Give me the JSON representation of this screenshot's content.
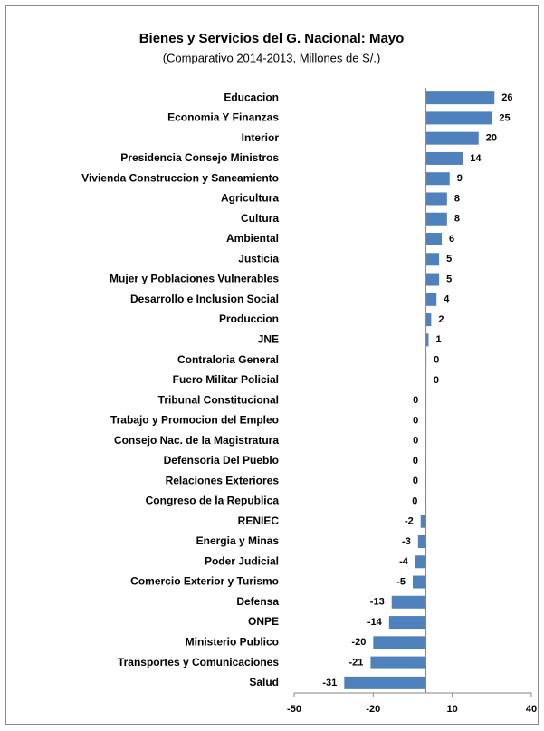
{
  "chart_data": {
    "type": "barh",
    "title": "Bienes y Servicios del G. Nacional:  Mayo",
    "subtitle": "(Comparativo 2014-2013, Millones de S/.)",
    "categories": [
      "Educacion",
      "Economia Y Finanzas",
      "Interior",
      "Presidencia Consejo Ministros",
      "Vivienda Construccion y Saneamiento",
      "Agricultura",
      "Cultura",
      "Ambiental",
      "Justicia",
      "Mujer y Poblaciones Vulnerables",
      "Desarrollo e Inclusion Social",
      "Produccion",
      "JNE",
      "Contraloria General",
      "Fuero Militar Policial",
      "Tribunal Constitucional",
      "Trabajo y Promocion del Empleo",
      "Consejo Nac. de la Magistratura",
      "Defensoria Del Pueblo",
      "Relaciones Exteriores",
      "Congreso de la Republica",
      "RENIEC",
      "Energia y Minas",
      "Poder Judicial",
      "Comercio Exterior y Turismo",
      "Defensa",
      "ONPE",
      "Ministerio Publico",
      "Transportes y Comunicaciones",
      "Salud"
    ],
    "values": [
      26,
      25,
      20,
      14,
      9,
      8,
      8,
      6,
      5,
      5,
      4,
      2,
      1,
      0.2,
      0.1,
      -0.1,
      -0.1,
      -0.1,
      -0.2,
      -0.2,
      -0.4,
      -2,
      -3,
      -4,
      -5,
      -13,
      -14,
      -20,
      -21,
      -31
    ],
    "value_labels": [
      "26",
      "25",
      "20",
      "14",
      "9",
      "8",
      "8",
      "6",
      "5",
      "5",
      "4",
      "2",
      "1",
      "0",
      "0",
      "0",
      "0",
      "0",
      "0",
      "0",
      "0",
      "-2",
      "-3",
      "-4",
      "-5",
      "-13",
      "-14",
      "-20",
      "-21",
      "-31"
    ],
    "color": "#4f81bd",
    "xlim": [
      -50,
      40
    ],
    "xticks": [
      -50,
      -20,
      10,
      40
    ]
  }
}
